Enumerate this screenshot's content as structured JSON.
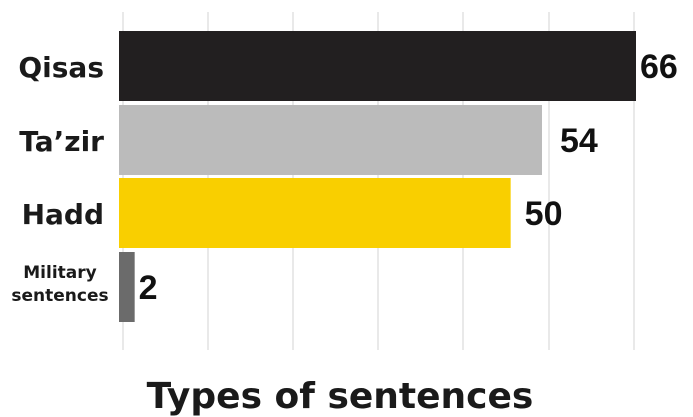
{
  "chart_data": {
    "type": "bar",
    "orientation": "horizontal",
    "categories": [
      "Qisas",
      "Ta’zir",
      "Hadd",
      "Military sentences"
    ],
    "category_lines": [
      [
        "Qisas"
      ],
      [
        "Ta’zir"
      ],
      [
        "Hadd"
      ],
      [
        "Military",
        "sentences"
      ]
    ],
    "values": [
      66,
      54,
      50,
      2
    ],
    "colors": [
      "#221f20",
      "#bbbbbb",
      "#f9cf00",
      "#6b6b6b"
    ],
    "xlabel": "Types of sentences",
    "xlim": [
      0,
      66
    ],
    "grid": true
  }
}
